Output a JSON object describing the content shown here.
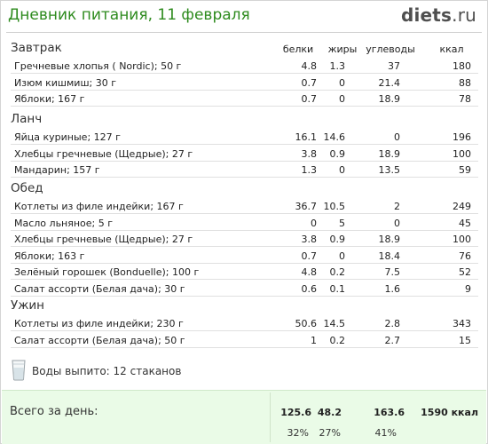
{
  "header": {
    "title": "Дневник питания, 11 февраля",
    "logo_bold": "diets",
    "logo_suffix": ".ru"
  },
  "columns": [
    "белки",
    "жиры",
    "углеводы",
    "ккал"
  ],
  "meals": [
    {
      "title": "Завтрак",
      "items": [
        {
          "name": "Гречневые хлопья ( Nordic); 50 г",
          "protein": "4.8",
          "fat": "1.3",
          "carbs": "37",
          "kcal": "180"
        },
        {
          "name": "Изюм кишмиш; 30 г",
          "protein": "0.7",
          "fat": "0",
          "carbs": "21.4",
          "kcal": "88"
        },
        {
          "name": "Яблоки; 167 г",
          "protein": "0.7",
          "fat": "0",
          "carbs": "18.9",
          "kcal": "78"
        }
      ]
    },
    {
      "title": "Ланч",
      "items": [
        {
          "name": "Яйца куриные; 127 г",
          "protein": "16.1",
          "fat": "14.6",
          "carbs": "0",
          "kcal": "196"
        },
        {
          "name": "Хлебцы гречневые (Щедрые); 27 г",
          "protein": "3.8",
          "fat": "0.9",
          "carbs": "18.9",
          "kcal": "100"
        },
        {
          "name": "Мандарин; 157 г",
          "protein": "1.3",
          "fat": "0",
          "carbs": "13.5",
          "kcal": "59"
        }
      ]
    },
    {
      "title": "Обед",
      "items": [
        {
          "name": "Котлеты из филе индейки; 167 г",
          "protein": "36.7",
          "fat": "10.5",
          "carbs": "2",
          "kcal": "249"
        },
        {
          "name": "Масло льняное; 5 г",
          "protein": "0",
          "fat": "5",
          "carbs": "0",
          "kcal": "45"
        },
        {
          "name": "Хлебцы гречневые (Щедрые); 27 г",
          "protein": "3.8",
          "fat": "0.9",
          "carbs": "18.9",
          "kcal": "100"
        },
        {
          "name": "Яблоки; 163 г",
          "protein": "0.7",
          "fat": "0",
          "carbs": "18.4",
          "kcal": "76"
        },
        {
          "name": "Зелёный горошек (Bonduelle); 100 г",
          "protein": "4.8",
          "fat": "0.2",
          "carbs": "7.5",
          "kcal": "52"
        },
        {
          "name": "Салат ассорти (Белая дача); 30 г",
          "protein": "0.6",
          "fat": "0.1",
          "carbs": "1.6",
          "kcal": "9"
        }
      ]
    },
    {
      "title": "Ужин",
      "items": [
        {
          "name": "Котлеты из филе индейки; 230 г",
          "protein": "50.6",
          "fat": "14.5",
          "carbs": "2.8",
          "kcal": "343"
        },
        {
          "name": "Салат ассорти (Белая дача); 50 г",
          "protein": "1",
          "fat": "0.2",
          "carbs": "2.7",
          "kcal": "15"
        }
      ]
    }
  ],
  "water": {
    "text": "Воды выпито: 12 стаканов",
    "icon": "glass-icon"
  },
  "total": {
    "label": "Всего за день:",
    "protein": "125.6",
    "fat": "48.2",
    "carbs": "163.6",
    "kcal": "1590 ккал",
    "protein_pct": "32%",
    "fat_pct": "27%",
    "carbs_pct": "41%"
  },
  "colors": {
    "title": "#2e8b1e",
    "total_bg": "#eafbe7"
  }
}
